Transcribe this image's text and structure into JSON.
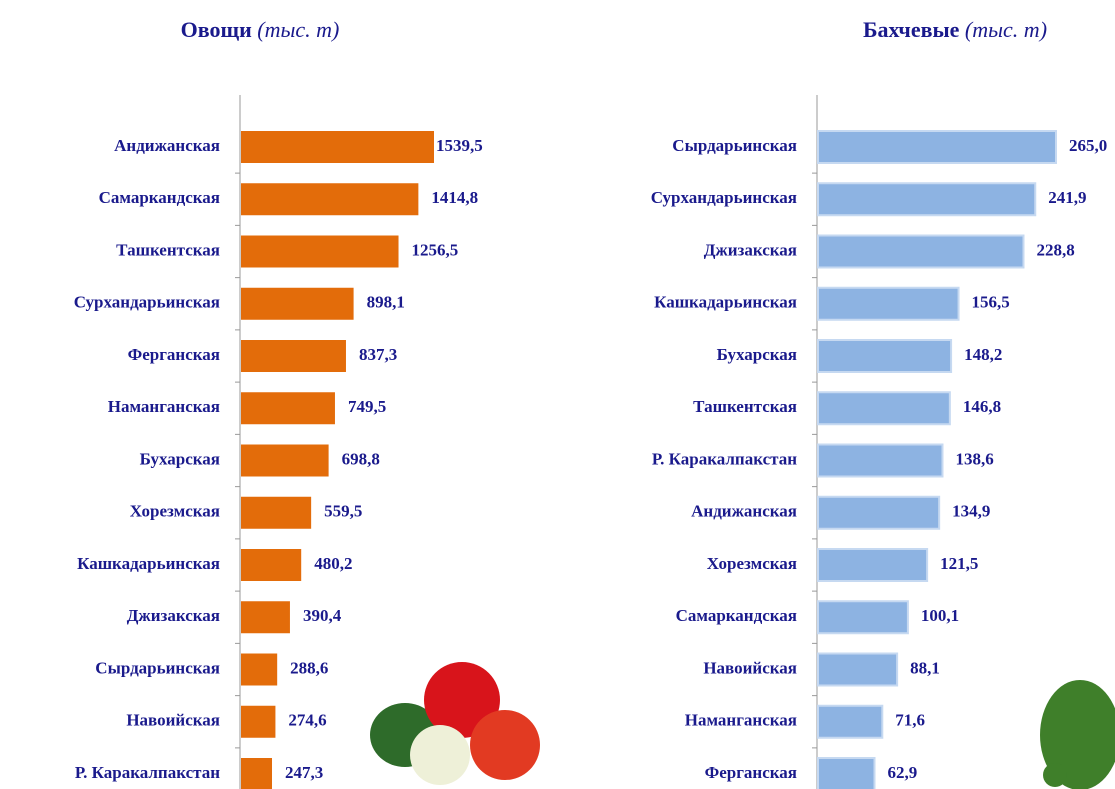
{
  "chart_data": [
    {
      "type": "bar",
      "title": "Овощи",
      "subtitle": "(тыс. т)",
      "color": "#e36c0a",
      "categories": [
        "Андижанская",
        "Самаркандская",
        "Ташкентская",
        "Сурхандарьинская",
        "Ферганская",
        "Наманганская",
        "Бухарская",
        "Хорезмская",
        "Кашкадарьинская",
        "Джизакская",
        "Сырдарьинская",
        "Навоийская",
        "Р. Каракалпакстан"
      ],
      "values": [
        1539.5,
        1414.8,
        1256.5,
        898.1,
        837.3,
        749.5,
        698.8,
        559.5,
        480.2,
        390.4,
        288.6,
        274.6,
        247.3
      ],
      "value_labels": [
        "1539,5",
        "1414,8",
        "1256,5",
        "898,1",
        "837,3",
        "749,5",
        "698,8",
        "559,5",
        "480,2",
        "390,4",
        "288,6",
        "274,6",
        "247,3"
      ]
    },
    {
      "type": "bar",
      "title": "Бахчевые",
      "subtitle": "(тыс. т)",
      "color": "#8db3e2",
      "categories": [
        "Сырдарьинская",
        "Сурхандарьинская",
        "Джизакская",
        "Кашкадарьинская",
        "Бухарская",
        "Ташкентская",
        "Р. Каракалпакстан",
        "Андижанская",
        "Хорезмская",
        "Самаркандская",
        "Навоийская",
        "Наманганская",
        "Ферганская"
      ],
      "values": [
        265.0,
        241.9,
        228.8,
        156.5,
        148.2,
        146.8,
        138.6,
        134.9,
        121.5,
        100.1,
        88.1,
        71.6,
        62.9
      ],
      "value_labels": [
        "265,0",
        "241,9",
        "228,8",
        "156,5",
        "148,2",
        "146,8",
        "138,6",
        "134,9",
        "121,5",
        "100,1",
        "88,1",
        "71,6",
        "62,9"
      ]
    }
  ]
}
